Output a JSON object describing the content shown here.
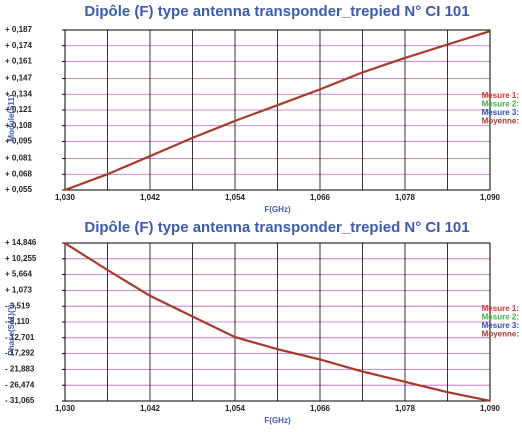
{
  "chart_data": [
    {
      "type": "line",
      "title": "Dipôle (F) type antenna transponder_trepied N° CI 101",
      "xlabel": "F(GHz)",
      "ylabel": "Module(S11)",
      "x": [
        1.03,
        1.036,
        1.042,
        1.048,
        1.054,
        1.06,
        1.066,
        1.072,
        1.078,
        1.084,
        1.09
      ],
      "values": [
        0.055,
        0.068,
        0.083,
        0.098,
        0.112,
        0.125,
        0.138,
        0.152,
        0.164,
        0.175,
        0.186
      ],
      "color": "#a83a2a",
      "xlim": [
        1.03,
        1.09
      ],
      "xticks": [
        {
          "value": 1.03,
          "label": "1,030"
        },
        {
          "value": 1.042,
          "label": "1,042"
        },
        {
          "value": 1.054,
          "label": "1,054"
        },
        {
          "value": 1.066,
          "label": "1,066"
        },
        {
          "value": 1.078,
          "label": "1,078"
        },
        {
          "value": 1.09,
          "label": "1,090"
        }
      ],
      "ylim": [
        0.055,
        0.187
      ],
      "yticks": [
        {
          "value": 0.055,
          "label": "+ 0,055"
        },
        {
          "value": 0.068,
          "label": "+ 0,068"
        },
        {
          "value": 0.081,
          "label": "+ 0,081"
        },
        {
          "value": 0.095,
          "label": "+ 0,095"
        },
        {
          "value": 0.108,
          "label": "+ 0,108"
        },
        {
          "value": 0.121,
          "label": "+ 0,121"
        },
        {
          "value": 0.134,
          "label": "+ 0,134"
        },
        {
          "value": 0.147,
          "label": "+ 0,147"
        },
        {
          "value": 0.161,
          "label": "+ 0,161"
        },
        {
          "value": 0.174,
          "label": "+ 0,174"
        },
        {
          "value": 0.187,
          "label": "+ 0,187"
        }
      ],
      "legend": [
        {
          "label": "Mesure 1:",
          "color": "#e03030"
        },
        {
          "label": "Mesure 2:",
          "color": "#40b040"
        },
        {
          "label": "Mesure 3:",
          "color": "#3050b0"
        },
        {
          "label": "Moyenne:",
          "color": "#a83a2a"
        }
      ],
      "grid": true
    },
    {
      "type": "line",
      "title": "Dipôle (F) type antenna transponder_trepied N° CI 101",
      "xlabel": "F(GHz)",
      "ylabel": "Phase(S11)(°)",
      "x": [
        1.03,
        1.036,
        1.042,
        1.048,
        1.054,
        1.06,
        1.066,
        1.072,
        1.078,
        1.084,
        1.09
      ],
      "values": [
        14.8,
        7.0,
        -0.5,
        -6.5,
        -12.5,
        -16.0,
        -19.0,
        -22.5,
        -25.5,
        -28.5,
        -31.0
      ],
      "color": "#a83a2a",
      "xlim": [
        1.03,
        1.09
      ],
      "xticks": [
        {
          "value": 1.03,
          "label": "1,030"
        },
        {
          "value": 1.042,
          "label": "1,042"
        },
        {
          "value": 1.054,
          "label": "1,054"
        },
        {
          "value": 1.066,
          "label": "1,066"
        },
        {
          "value": 1.078,
          "label": "1,078"
        },
        {
          "value": 1.09,
          "label": "1,090"
        }
      ],
      "ylim": [
        -31.065,
        14.846
      ],
      "yticks": [
        {
          "value": -31.065,
          "label": "- 31,065"
        },
        {
          "value": -26.474,
          "label": "- 26,474"
        },
        {
          "value": -21.883,
          "label": "- 21,883"
        },
        {
          "value": -17.292,
          "label": "- 17,292"
        },
        {
          "value": -12.701,
          "label": "- 12,701"
        },
        {
          "value": -8.11,
          "label": "- 8,110"
        },
        {
          "value": -3.519,
          "label": "- 3,519"
        },
        {
          "value": 1.073,
          "label": "+ 1,073"
        },
        {
          "value": 5.664,
          "label": "+ 5,664"
        },
        {
          "value": 10.255,
          "label": "+ 10,255"
        },
        {
          "value": 14.846,
          "label": "+ 14,846"
        }
      ],
      "legend": [
        {
          "label": "Mesure 1:",
          "color": "#e03030"
        },
        {
          "label": "Mesure 2:",
          "color": "#40b040"
        },
        {
          "label": "Mesure 3:",
          "color": "#3050b0"
        },
        {
          "label": "Moyenne:",
          "color": "#a83a2a"
        }
      ],
      "grid": true
    }
  ]
}
